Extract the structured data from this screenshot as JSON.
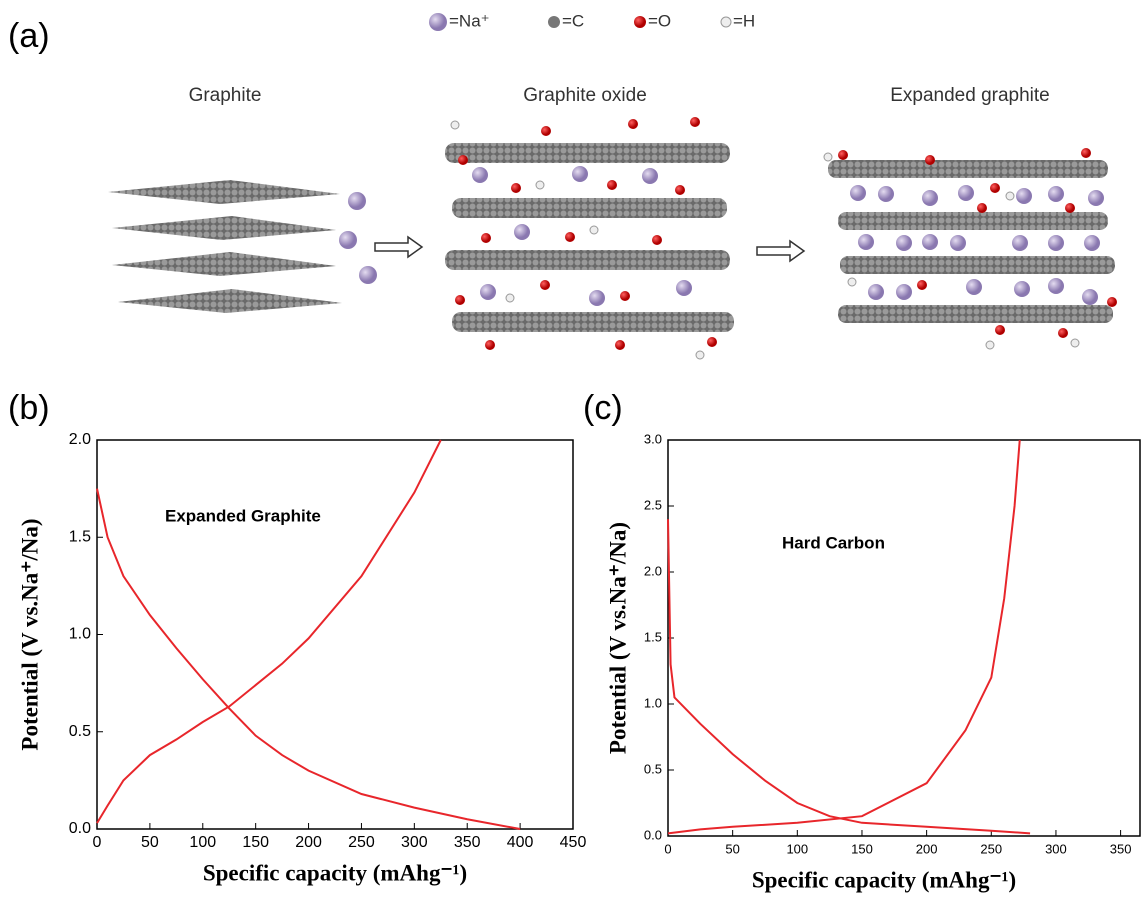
{
  "panel_a": {
    "label": "(a)",
    "legend": [
      "=Na⁺",
      "=C",
      "=O",
      "=H"
    ],
    "stages": [
      "Graphite",
      "Graphite oxide",
      "Expanded graphite"
    ]
  },
  "chart_data": [
    {
      "type": "line",
      "panel_label": "(b)",
      "annotation": "Expanded Graphite",
      "x_label": "Specific capacity (mAhg⁻¹)",
      "y_label": "Potential (V vs.Na⁺/Na)",
      "xlim": [
        0,
        450
      ],
      "xticks": [
        0,
        50,
        100,
        150,
        200,
        250,
        300,
        350,
        400,
        450
      ],
      "ylim": [
        0,
        2
      ],
      "yticks": [
        {
          "value": 0,
          "label": "0.0"
        },
        0.5,
        {
          "value": 1,
          "label": "1.0"
        },
        1.5,
        {
          "value": 2,
          "label": "2.0"
        }
      ],
      "series": [
        {
          "color": "#e8262b",
          "x": [
            0,
            10,
            25,
            50,
            75,
            100,
            125,
            150,
            175,
            200,
            250,
            300,
            350,
            400
          ],
          "values": [
            1.75,
            1.5,
            1.3,
            1.1,
            0.93,
            0.77,
            0.62,
            0.48,
            0.38,
            0.3,
            0.18,
            0.11,
            0.05,
            0
          ]
        },
        {
          "color": "#e8262b",
          "x": [
            0,
            10,
            25,
            50,
            75,
            100,
            125,
            150,
            175,
            200,
            250,
            300,
            325
          ],
          "values": [
            0.03,
            0.12,
            0.25,
            0.38,
            0.46,
            0.55,
            0.63,
            0.74,
            0.85,
            0.98,
            1.3,
            1.73,
            2.0
          ]
        }
      ]
    },
    {
      "type": "line",
      "panel_label": "(c)",
      "annotation": "Hard Carbon",
      "x_label": "Specific capacity (mAhg⁻¹)",
      "y_label": "Potential (V vs.Na⁺/Na)",
      "xlim": [
        0,
        365
      ],
      "xticks": [
        0,
        50,
        100,
        150,
        200,
        250,
        300,
        350
      ],
      "ylim": [
        0,
        3
      ],
      "yticks": [
        {
          "value": 0,
          "label": "0.0"
        },
        0.5,
        {
          "value": 1,
          "label": "1.0"
        },
        1.5,
        {
          "value": 2,
          "label": "2.0"
        },
        2.5,
        {
          "value": 3,
          "label": "3.0"
        }
      ],
      "series": [
        {
          "color": "#e8262b",
          "x": [
            0,
            2,
            5,
            25,
            50,
            75,
            100,
            125,
            150,
            200,
            250,
            280
          ],
          "values": [
            2.4,
            1.3,
            1.05,
            0.85,
            0.62,
            0.42,
            0.25,
            0.15,
            0.1,
            0.07,
            0.04,
            0.02
          ]
        },
        {
          "color": "#e8262b",
          "x": [
            0,
            25,
            50,
            100,
            150,
            200,
            230,
            250,
            260,
            268,
            272
          ],
          "values": [
            0.02,
            0.05,
            0.07,
            0.1,
            0.15,
            0.4,
            0.8,
            1.2,
            1.8,
            2.5,
            3.0
          ]
        }
      ]
    }
  ]
}
